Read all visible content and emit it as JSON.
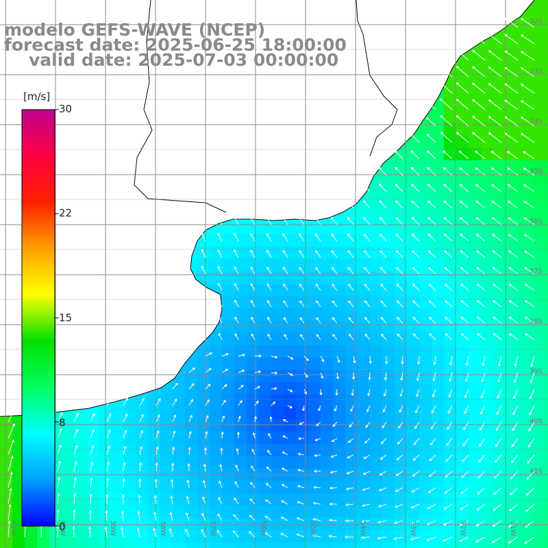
{
  "title": {
    "line1": "modelo GEFS-WAVE (NCEP)",
    "line2": "forecast date: 2025-06-25 18:00:00",
    "line3": "valid date: 2025-07-03 00:00:00"
  },
  "colorbar": {
    "units": "[m/s]",
    "ticks": [
      "30",
      "22",
      "15",
      "8",
      "0"
    ],
    "min": 0,
    "max": 30,
    "colors": [
      "#0000ff",
      "#00a0ff",
      "#00ffff",
      "#00ff60",
      "#00e000",
      "#ffff00",
      "#ffa000",
      "#ff2000",
      "#ff0040",
      "#c00090"
    ]
  },
  "map": {
    "lat_labels": [
      "32S",
      "33S",
      "34S",
      "35S",
      "36S",
      "37S",
      "38S",
      "39S",
      "40S",
      "41S"
    ],
    "lon_labels": [
      "61W",
      "60W",
      "59W",
      "58W",
      "57W",
      "56W",
      "55W",
      "54W",
      "53W",
      "52W",
      "51W"
    ],
    "land_color": "#ffffff",
    "grid_color": "#8a8a8a"
  }
}
